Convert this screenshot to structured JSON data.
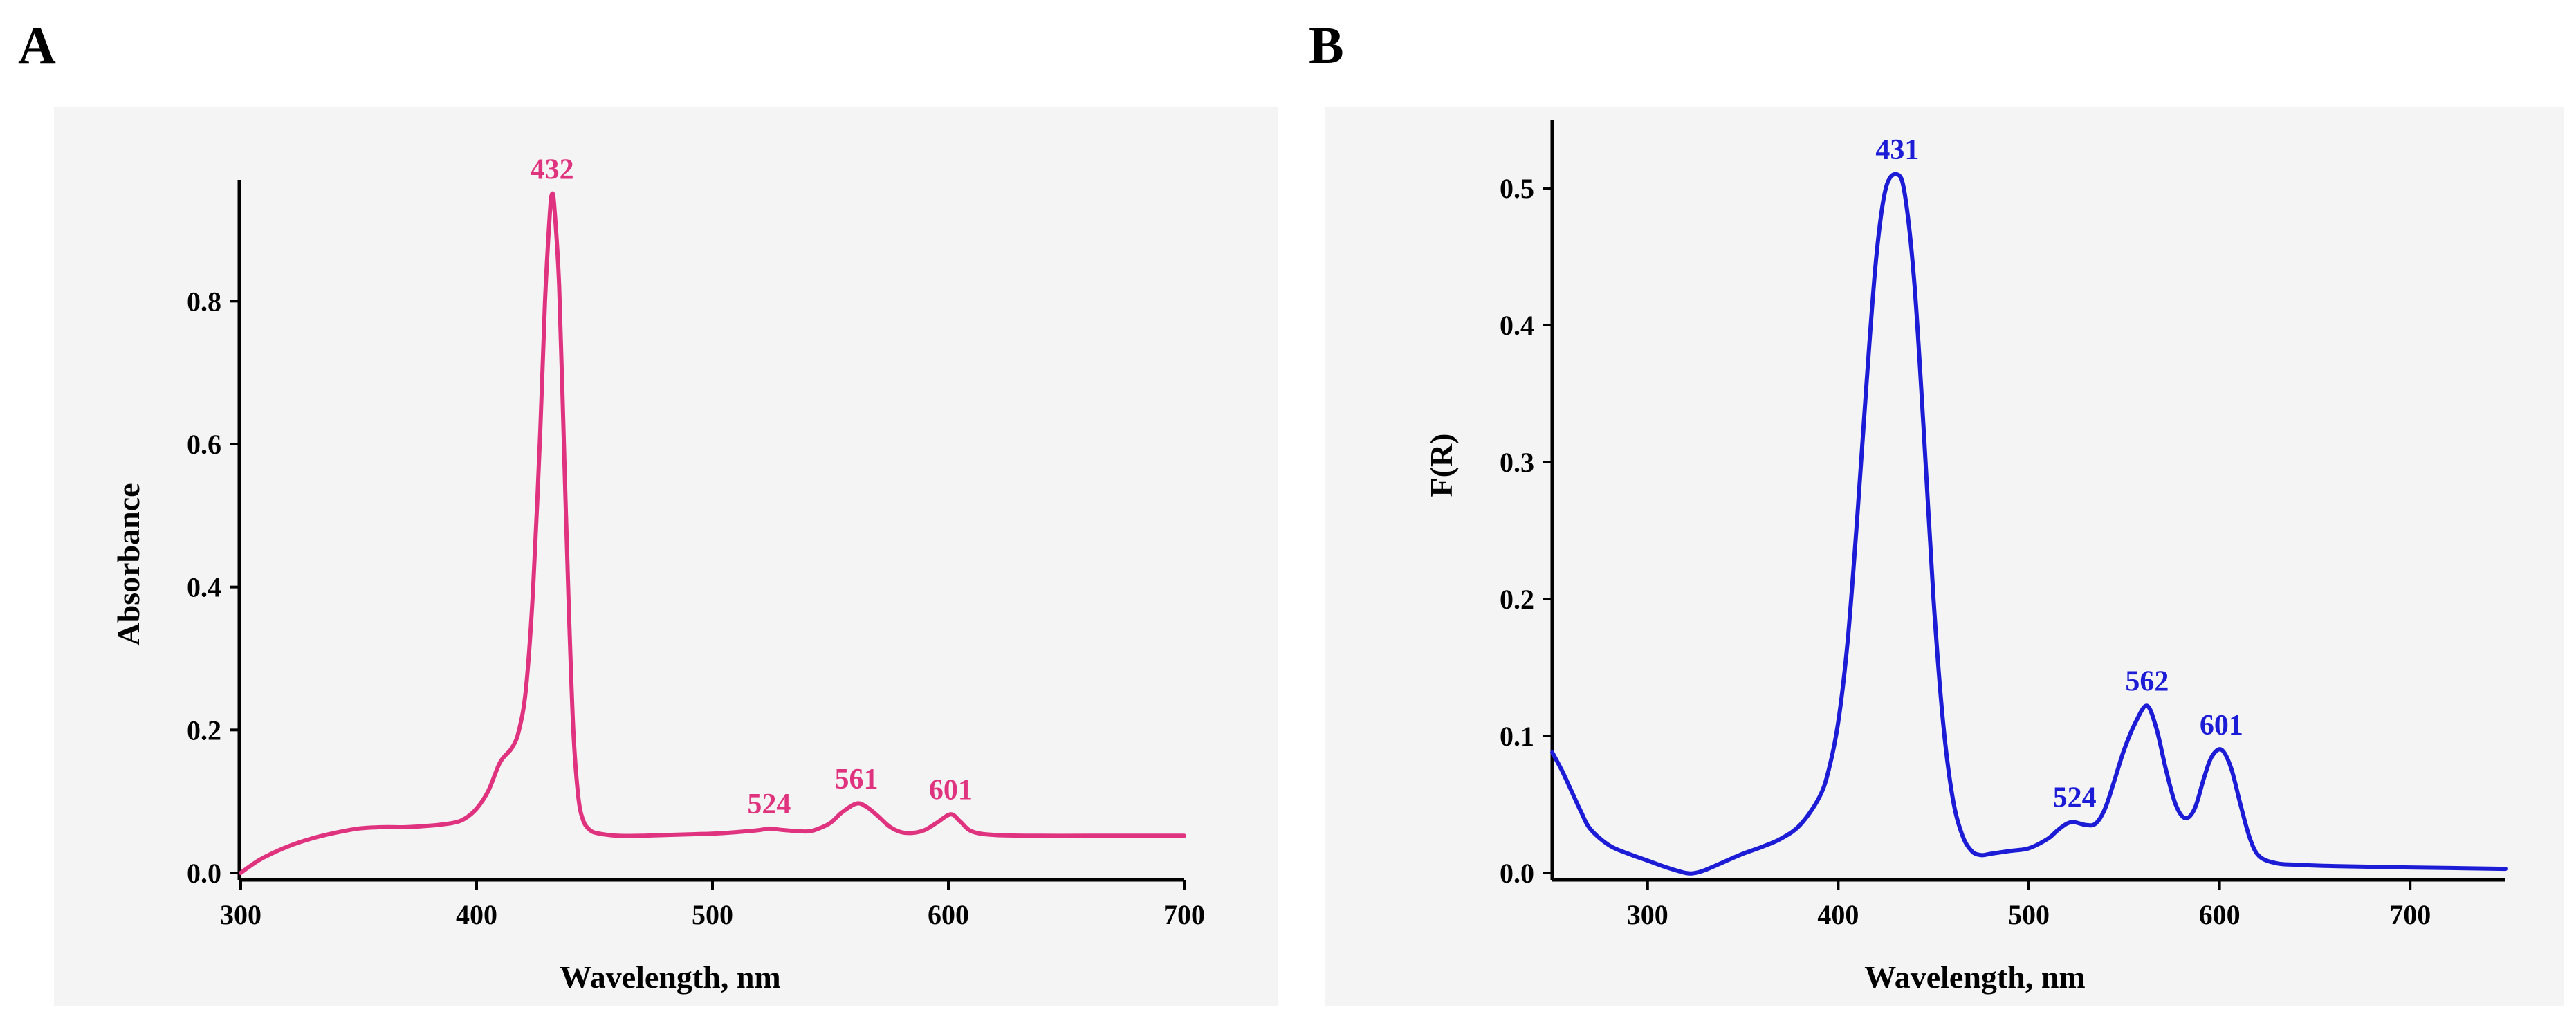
{
  "panels": {
    "a_label": "A",
    "b_label": "B"
  },
  "colors": {
    "panel_bg": "#f4f4f4",
    "series_a": "#e0337f",
    "series_b": "#1c1cd6"
  },
  "chart_data": [
    {
      "type": "line",
      "panel": "A",
      "title": "",
      "xlabel": "Wavelength, nm",
      "ylabel": "Absorbance",
      "xlim": [
        300,
        700
      ],
      "ylim": [
        0,
        0.96
      ],
      "grid": false,
      "xticks": [
        300,
        400,
        500,
        600,
        700
      ],
      "xtick_labels": [
        "300",
        "400",
        "500",
        "600",
        "700"
      ],
      "yticks": [
        0,
        0.2,
        0.4,
        0.6,
        0.8
      ],
      "ytick_labels": [
        "0.0",
        "0.2",
        "0.4",
        "0.6",
        "0.8"
      ],
      "series": [
        {
          "name": "Absorbance",
          "x": [
            300,
            305,
            310,
            320,
            330,
            340,
            350,
            360,
            370,
            380,
            390,
            395,
            400,
            405,
            410,
            415,
            418,
            421,
            424,
            427,
            429,
            431,
            432,
            433,
            435,
            437,
            439,
            441,
            443,
            445,
            448,
            452,
            460,
            470,
            480,
            490,
            500,
            510,
            520,
            524,
            530,
            540,
            545,
            550,
            555,
            561,
            565,
            570,
            575,
            580,
            585,
            590,
            595,
            601,
            605,
            610,
            620,
            640,
            660,
            680,
            700
          ],
          "y": [
            0.0,
            0.012,
            0.022,
            0.037,
            0.048,
            0.056,
            0.062,
            0.064,
            0.064,
            0.066,
            0.07,
            0.076,
            0.09,
            0.115,
            0.155,
            0.175,
            0.2,
            0.26,
            0.4,
            0.62,
            0.8,
            0.92,
            0.95,
            0.93,
            0.82,
            0.6,
            0.38,
            0.2,
            0.11,
            0.075,
            0.06,
            0.055,
            0.052,
            0.052,
            0.053,
            0.054,
            0.055,
            0.057,
            0.06,
            0.062,
            0.06,
            0.058,
            0.062,
            0.07,
            0.085,
            0.097,
            0.093,
            0.08,
            0.065,
            0.057,
            0.056,
            0.06,
            0.07,
            0.082,
            0.072,
            0.058,
            0.053,
            0.052,
            0.052,
            0.052,
            0.052
          ]
        }
      ],
      "annotations": [
        {
          "text": "432",
          "x": 432,
          "y": 0.95
        },
        {
          "text": "524",
          "x": 524,
          "y": 0.062
        },
        {
          "text": "561",
          "x": 561,
          "y": 0.097
        },
        {
          "text": "601",
          "x": 601,
          "y": 0.082
        }
      ]
    },
    {
      "type": "line",
      "panel": "B",
      "title": "",
      "xlabel": "Wavelength, nm",
      "ylabel": "F(R)",
      "xlim": [
        250,
        750
      ],
      "ylim": [
        0,
        0.55
      ],
      "grid": false,
      "xticks": [
        300,
        400,
        500,
        600,
        700
      ],
      "xtick_labels": [
        "300",
        "400",
        "500",
        "600",
        "700"
      ],
      "yticks": [
        0,
        0.1,
        0.2,
        0.3,
        0.4,
        0.5
      ],
      "ytick_labels": [
        "0.0",
        "0.1",
        "0.2",
        "0.3",
        "0.4",
        "0.5"
      ],
      "series": [
        {
          "name": "F(R)",
          "x": [
            250,
            255,
            260,
            265,
            270,
            280,
            290,
            300,
            310,
            320,
            325,
            330,
            340,
            350,
            360,
            370,
            380,
            390,
            395,
            400,
            405,
            410,
            415,
            420,
            425,
            431,
            435,
            440,
            445,
            450,
            455,
            460,
            465,
            470,
            475,
            480,
            490,
            500,
            510,
            515,
            520,
            524,
            530,
            535,
            540,
            545,
            550,
            556,
            562,
            567,
            572,
            577,
            582,
            587,
            592,
            596,
            601,
            606,
            611,
            616,
            621,
            630,
            640,
            660,
            700,
            750
          ],
          "y": [
            0.088,
            0.075,
            0.06,
            0.045,
            0.032,
            0.02,
            0.014,
            0.009,
            0.004,
            0.0,
            0.0,
            0.002,
            0.008,
            0.014,
            0.019,
            0.025,
            0.035,
            0.055,
            0.075,
            0.11,
            0.17,
            0.26,
            0.36,
            0.45,
            0.5,
            0.51,
            0.495,
            0.43,
            0.32,
            0.2,
            0.11,
            0.055,
            0.028,
            0.016,
            0.013,
            0.014,
            0.016,
            0.018,
            0.025,
            0.031,
            0.036,
            0.037,
            0.035,
            0.036,
            0.047,
            0.068,
            0.09,
            0.11,
            0.122,
            0.105,
            0.075,
            0.05,
            0.04,
            0.047,
            0.07,
            0.085,
            0.09,
            0.077,
            0.05,
            0.025,
            0.012,
            0.007,
            0.006,
            0.005,
            0.004,
            0.003
          ]
        }
      ],
      "annotations": [
        {
          "text": "431",
          "x": 431,
          "y": 0.51
        },
        {
          "text": "524",
          "x": 524,
          "y": 0.037
        },
        {
          "text": "562",
          "x": 562,
          "y": 0.122
        },
        {
          "text": "601",
          "x": 601,
          "y": 0.09
        }
      ]
    }
  ]
}
